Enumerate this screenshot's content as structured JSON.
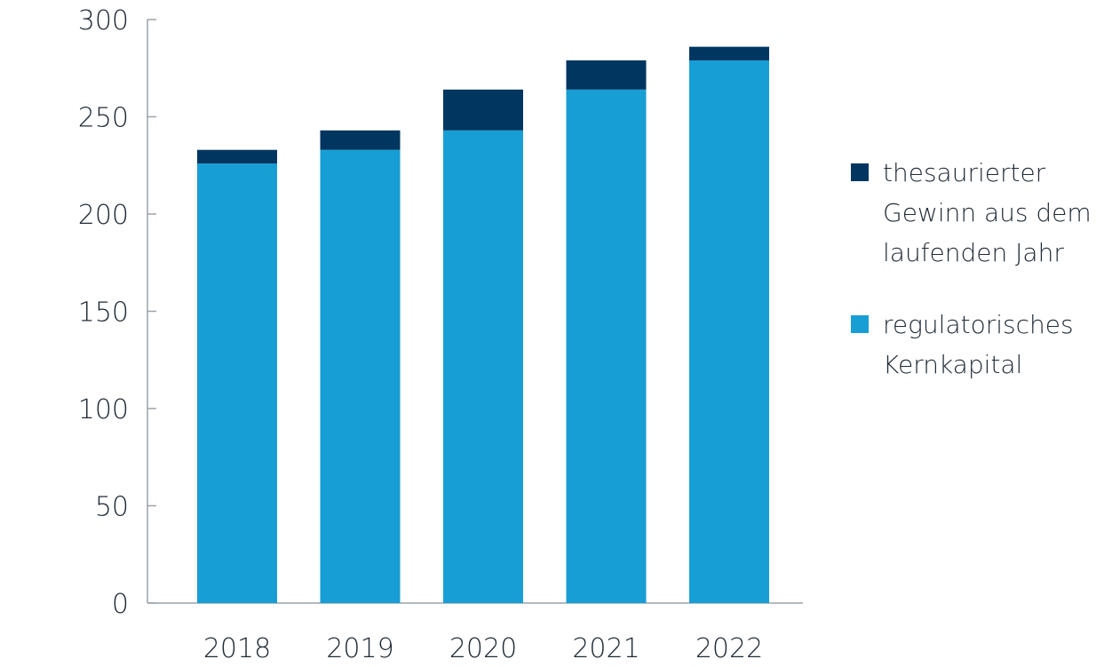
{
  "chart_data": {
    "type": "bar",
    "stacked": true,
    "categories": [
      "2018",
      "2019",
      "2020",
      "2021",
      "2022"
    ],
    "series": [
      {
        "name": "regulatorisches Kernkapital",
        "color": "#179ed4",
        "values": [
          226,
          233,
          243,
          264,
          279
        ]
      },
      {
        "name": "thesaurierter Gewinn aus dem laufenden Jahr",
        "color": "#003660",
        "values": [
          7,
          10,
          21,
          15,
          7
        ]
      }
    ],
    "y_ticks": [
      "0",
      "50",
      "100",
      "150",
      "200",
      "250",
      "300"
    ],
    "ylim": [
      0,
      300
    ],
    "grid": false,
    "legend_position": "right"
  },
  "legend": [
    {
      "label": "thesaurierter Gewinn aus dem laufenden Jahr",
      "color": "#003660"
    },
    {
      "label": "regulatorisches Kernkapital",
      "color": "#179ed4"
    }
  ]
}
